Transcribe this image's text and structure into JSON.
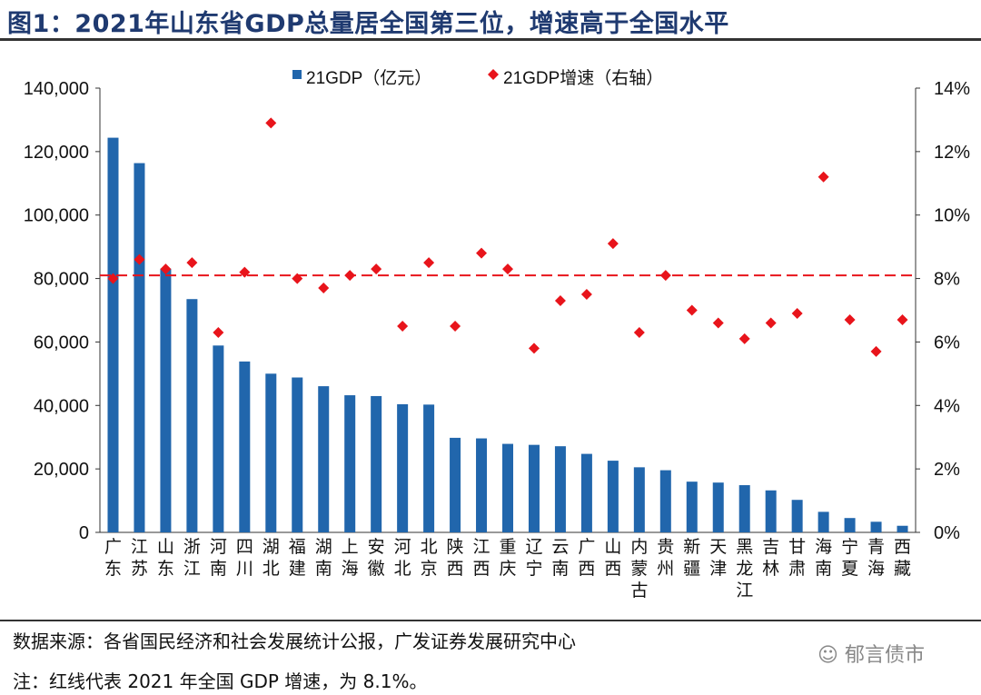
{
  "title": "图1：2021年山东省GDP总量居全国第三位，增速高于全国水平",
  "source": "数据来源：各省国民经济和社会发展统计公报，广发证券发展研究中心",
  "note": "注：红线代表 2021 年全国 GDP 增速，为 8.1%。",
  "watermark": "郁言债市",
  "chart_data": {
    "type": "bar",
    "categories": [
      "广东",
      "江苏",
      "山东",
      "浙江",
      "河南",
      "四川",
      "湖北",
      "福建",
      "湖南",
      "上海",
      "安徽",
      "河北",
      "北京",
      "陕西",
      "江西",
      "重庆",
      "辽宁",
      "云南",
      "广西",
      "山西",
      "内蒙古",
      "贵州",
      "新疆",
      "天津",
      "黑龙江",
      "吉林",
      "甘肃",
      "海南",
      "宁夏",
      "青海",
      "西藏"
    ],
    "series": [
      {
        "name": "21GDP（亿元）",
        "type": "bar",
        "axis": "left",
        "color": "#2166ac",
        "values": [
          124370,
          116364,
          83096,
          73516,
          58887,
          53851,
          50013,
          48810,
          46063,
          43215,
          42959,
          40391,
          40270,
          29801,
          29620,
          27894,
          27584,
          27147,
          24741,
          22590,
          20514,
          19586,
          15984,
          15695,
          14879,
          13236,
          10243,
          6475,
          4522,
          3347,
          2080
        ]
      },
      {
        "name": "21GDP增速（右轴）",
        "type": "scatter",
        "axis": "right",
        "color": "#e8141b",
        "values": [
          8.0,
          8.6,
          8.3,
          8.5,
          6.3,
          8.2,
          12.9,
          8.0,
          7.7,
          8.1,
          8.3,
          6.5,
          8.5,
          6.5,
          8.8,
          8.3,
          5.8,
          7.3,
          7.5,
          9.1,
          6.3,
          8.1,
          7.0,
          6.6,
          6.1,
          6.6,
          6.9,
          11.2,
          6.7,
          5.7,
          6.7
        ]
      }
    ],
    "reference_line": {
      "value": 8.1,
      "axis": "right",
      "style": "dashed",
      "color": "#e8141b"
    },
    "ylim_left": [
      0,
      140000
    ],
    "ylim_right": [
      0,
      14
    ],
    "left_ticks": [
      "0",
      "20,000",
      "40,000",
      "60,000",
      "80,000",
      "100,000",
      "120,000",
      "140,000"
    ],
    "right_ticks": [
      "0%",
      "2%",
      "4%",
      "6%",
      "8%",
      "10%",
      "12%",
      "14%"
    ],
    "legend_position": "top",
    "grid": false
  }
}
